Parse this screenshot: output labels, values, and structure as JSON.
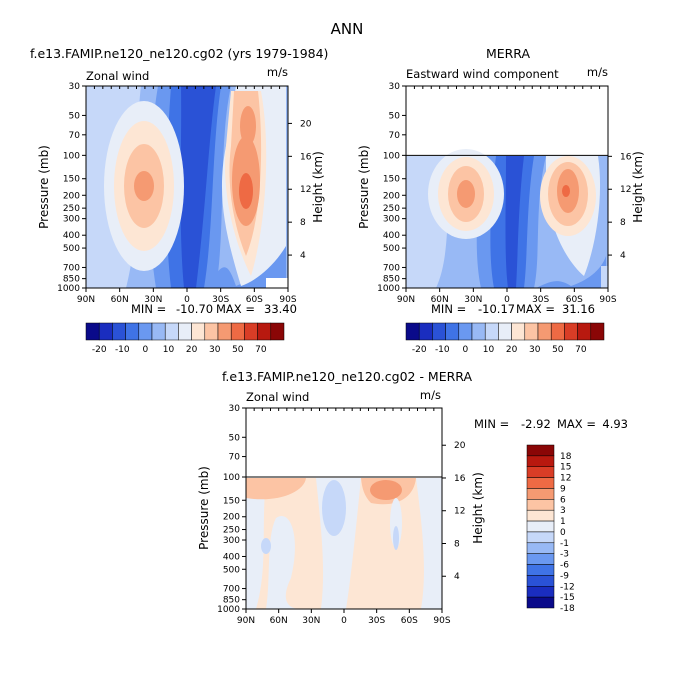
{
  "figure": {
    "title": "ANN"
  },
  "palettes": {
    "main": [
      "#0a0a8a",
      "#1a2dbf",
      "#2a52d6",
      "#3f73e6",
      "#6a98f0",
      "#98b9f5",
      "#c6d8f9",
      "#e8eef8",
      "#fde6d4",
      "#fcc4a4",
      "#f59a72",
      "#ee6a44",
      "#d93d26",
      "#b8190f",
      "#8a0606"
    ],
    "diff": [
      "#0a0a8a",
      "#1a2dbf",
      "#2a52d6",
      "#3f73e6",
      "#6a98f0",
      "#98b9f5",
      "#c6d8f9",
      "#e8eef8",
      "#fde6d4",
      "#fcc4a4",
      "#f59a72",
      "#ee6a44",
      "#d93d26",
      "#b8190f",
      "#8a0606"
    ]
  },
  "colorbar_main": {
    "labels": [
      "-20",
      "-10",
      "0",
      "10",
      "20",
      "30",
      "50",
      "70"
    ]
  },
  "colorbar_diff": {
    "labels": [
      "18",
      "15",
      "12",
      "9",
      "6",
      "3",
      "1",
      "0",
      "-1",
      "-3",
      "-6",
      "-9",
      "-12",
      "-15",
      "-18"
    ]
  },
  "chart_data": [
    {
      "type": "heatmap",
      "title": "f.e13.FAMIP.ne120_ne120.cg02 (yrs 1979-1984)",
      "left_label": "Zonal wind",
      "units": "m/s",
      "xlabel": "",
      "ylabel": "Pressure (mb)",
      "ylabel_right": "Height (km)",
      "x_ticks": [
        "90N",
        "60N",
        "30N",
        "0",
        "30S",
        "60S",
        "90S"
      ],
      "y_ticks": [
        "30",
        "50",
        "70",
        "100",
        "150",
        "200",
        "250",
        "300",
        "400",
        "500",
        "700",
        "850",
        "1000"
      ],
      "height_ticks": [
        "4",
        "8",
        "12",
        "16",
        "20"
      ],
      "stats": {
        "min": "-10.70",
        "max": "33.40"
      },
      "ylim": [
        1000,
        30
      ]
    },
    {
      "type": "heatmap",
      "title": "MERRA",
      "left_label": "Eastward wind component",
      "units": "m/s",
      "xlabel": "",
      "ylabel": "Pressure (mb)",
      "ylabel_right": "Height (km)",
      "x_ticks": [
        "90N",
        "60N",
        "30N",
        "0",
        "30S",
        "60S",
        "90S"
      ],
      "y_ticks": [
        "30",
        "50",
        "70",
        "100",
        "150",
        "200",
        "250",
        "300",
        "400",
        "500",
        "700",
        "850",
        "1000"
      ],
      "height_ticks": [
        "4",
        "8",
        "12",
        "16"
      ],
      "stats": {
        "min": "-10.17",
        "max": "31.16"
      },
      "ylim": [
        1000,
        30
      ]
    },
    {
      "type": "heatmap",
      "title": "f.e13.FAMIP.ne120_ne120.cg02 - MERRA",
      "left_label": "Zonal wind",
      "units": "m/s",
      "xlabel": "",
      "ylabel": "Pressure (mb)",
      "ylabel_right": "Height (km)",
      "x_ticks": [
        "90N",
        "60N",
        "30N",
        "0",
        "30S",
        "60S",
        "90S"
      ],
      "y_ticks": [
        "30",
        "50",
        "70",
        "100",
        "150",
        "200",
        "250",
        "300",
        "400",
        "500",
        "700",
        "850",
        "1000"
      ],
      "height_ticks": [
        "4",
        "8",
        "12",
        "16",
        "20"
      ],
      "stats": {
        "min": "-2.92",
        "max": "4.93"
      },
      "ylim": [
        1000,
        30
      ]
    }
  ]
}
